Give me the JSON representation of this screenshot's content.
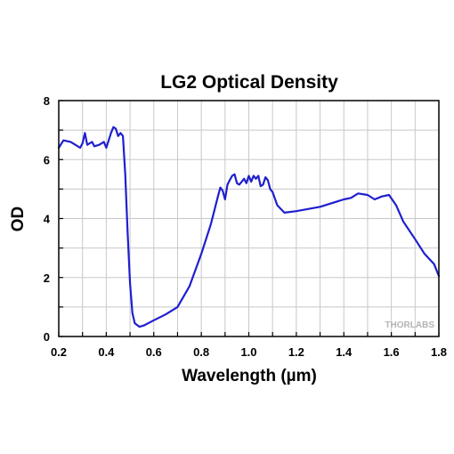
{
  "chart_data": {
    "type": "line",
    "title": "LG2 Optical Density",
    "xlabel": "Wavelength (µm)",
    "ylabel": "OD",
    "xlim": [
      0.2,
      1.8
    ],
    "ylim": [
      0,
      8
    ],
    "x_ticks": [
      "0.2",
      "0.4",
      "0.6",
      "0.8",
      "1.0",
      "1.2",
      "1.4",
      "1.6",
      "1.8"
    ],
    "y_ticks": [
      "0",
      "2",
      "4",
      "6",
      "8"
    ],
    "grid": true,
    "series": [
      {
        "color": "#1f1fcf",
        "points": [
          [
            0.2,
            6.4
          ],
          [
            0.22,
            6.65
          ],
          [
            0.25,
            6.6
          ],
          [
            0.27,
            6.5
          ],
          [
            0.29,
            6.4
          ],
          [
            0.3,
            6.55
          ],
          [
            0.31,
            6.9
          ],
          [
            0.32,
            6.5
          ],
          [
            0.34,
            6.6
          ],
          [
            0.35,
            6.45
          ],
          [
            0.37,
            6.5
          ],
          [
            0.39,
            6.6
          ],
          [
            0.4,
            6.4
          ],
          [
            0.42,
            6.9
          ],
          [
            0.43,
            7.1
          ],
          [
            0.44,
            7.05
          ],
          [
            0.45,
            6.8
          ],
          [
            0.46,
            6.9
          ],
          [
            0.47,
            6.8
          ],
          [
            0.48,
            5.5
          ],
          [
            0.49,
            3.5
          ],
          [
            0.5,
            1.8
          ],
          [
            0.51,
            0.8
          ],
          [
            0.52,
            0.45
          ],
          [
            0.54,
            0.33
          ],
          [
            0.56,
            0.38
          ],
          [
            0.6,
            0.55
          ],
          [
            0.65,
            0.75
          ],
          [
            0.7,
            1.0
          ],
          [
            0.75,
            1.7
          ],
          [
            0.8,
            2.8
          ],
          [
            0.84,
            3.8
          ],
          [
            0.87,
            4.75
          ],
          [
            0.88,
            5.05
          ],
          [
            0.89,
            4.95
          ],
          [
            0.9,
            4.65
          ],
          [
            0.91,
            5.15
          ],
          [
            0.92,
            5.3
          ],
          [
            0.93,
            5.45
          ],
          [
            0.94,
            5.5
          ],
          [
            0.95,
            5.2
          ],
          [
            0.96,
            5.15
          ],
          [
            0.98,
            5.35
          ],
          [
            0.99,
            5.2
          ],
          [
            1.0,
            5.45
          ],
          [
            1.01,
            5.25
          ],
          [
            1.02,
            5.45
          ],
          [
            1.03,
            5.35
          ],
          [
            1.04,
            5.45
          ],
          [
            1.05,
            5.1
          ],
          [
            1.06,
            5.15
          ],
          [
            1.07,
            5.4
          ],
          [
            1.08,
            5.3
          ],
          [
            1.09,
            5.0
          ],
          [
            1.1,
            4.9
          ],
          [
            1.12,
            4.45
          ],
          [
            1.15,
            4.2
          ],
          [
            1.2,
            4.25
          ],
          [
            1.3,
            4.4
          ],
          [
            1.4,
            4.65
          ],
          [
            1.43,
            4.7
          ],
          [
            1.46,
            4.85
          ],
          [
            1.5,
            4.8
          ],
          [
            1.53,
            4.65
          ],
          [
            1.56,
            4.75
          ],
          [
            1.59,
            4.8
          ],
          [
            1.62,
            4.45
          ],
          [
            1.65,
            3.9
          ],
          [
            1.7,
            3.3
          ],
          [
            1.74,
            2.8
          ],
          [
            1.78,
            2.45
          ],
          [
            1.8,
            2.05
          ]
        ]
      }
    ],
    "watermark": "THORLABS"
  }
}
